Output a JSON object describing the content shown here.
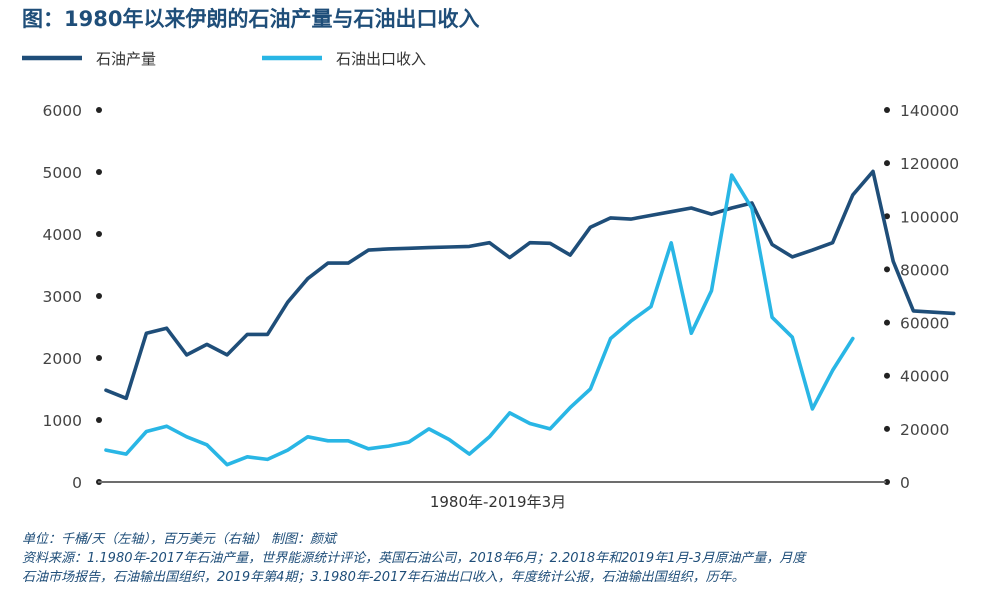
{
  "chart_data": {
    "type": "line",
    "title": "图：1980年以来伊朗的石油产量与石油出口收入",
    "xlabel": "1980年-2019年3月",
    "y_left": {
      "range": [
        0,
        6000
      ],
      "ticks": [
        "0",
        "1000",
        "2000",
        "3000",
        "4000",
        "5000",
        "6000"
      ]
    },
    "y_right": {
      "range": [
        0,
        140000
      ],
      "ticks": [
        "0",
        "20000",
        "40000",
        "60000",
        "80000",
        "100000",
        "120000",
        "140000"
      ]
    },
    "x_range": [
      0,
      38
    ],
    "legend": {
      "placement": "top-left"
    },
    "grid": false,
    "series": [
      {
        "name": "石油产量",
        "axis": "left",
        "color": "#1f4e79",
        "x": [
          0,
          1,
          2,
          3,
          4,
          5,
          6,
          7,
          8,
          9,
          10,
          11,
          12,
          13,
          14,
          15,
          16,
          17,
          18,
          19,
          20,
          21,
          22,
          23,
          24,
          25,
          26,
          27,
          28,
          29,
          30,
          31,
          32,
          33,
          34,
          35,
          36,
          37,
          38
        ],
        "values": [
          1480,
          1350,
          2400,
          2480,
          2050,
          2220,
          2050,
          2380,
          2380,
          2900,
          3280,
          3530,
          3530,
          3740,
          3760,
          3770,
          3780,
          3790,
          3800,
          3860,
          3620,
          3860,
          3850,
          3660,
          4110,
          4260,
          4240,
          4300,
          4360,
          4420,
          4320,
          4420,
          4500,
          3830,
          3630,
          3740,
          3860,
          4630,
          5010
        ]
      },
      {
        "name": "石油出口收入",
        "axis": "right",
        "color": "#29b6e5",
        "x": [
          0,
          1,
          2,
          3,
          4,
          5,
          6,
          7,
          8,
          9,
          10,
          11,
          12,
          13,
          14,
          15,
          16,
          17,
          18,
          19,
          20,
          21,
          22,
          23,
          24,
          25,
          26,
          27,
          28,
          29,
          30,
          31,
          32,
          33,
          34,
          35,
          36,
          37,
          38
        ],
        "values": [
          12000,
          10500,
          19000,
          21000,
          17000,
          14000,
          6500,
          9500,
          8500,
          12000,
          17000,
          15500,
          15500,
          12500,
          13500,
          15000,
          20000,
          16000,
          10500,
          17000,
          26000,
          22000,
          20000,
          28000,
          35000,
          54000,
          60500,
          66000,
          90000,
          56000,
          72000,
          115500,
          103000,
          62000,
          54500,
          27500,
          42000,
          54000,
          null
        ]
      }
    ],
    "extra_segment": {
      "axis": "left",
      "points": [
        [
          38,
          5010
        ],
        [
          39,
          3560
        ],
        [
          40,
          2760
        ],
        [
          42,
          2720
        ]
      ]
    }
  },
  "footnote": {
    "line1": "单位：千桶/天（左轴），百万美元（右轴）     制图：颜斌",
    "line2": "资料来源：1.1980年-2017年石油产量，世界能源统计评论，英国石油公司，2018年6月；2.2018年和2019年1月-3月原油产量，月度",
    "line3": "石油市场报告，石油输出国组织，2019年第4期；3.1980年-2017年石油出口收入，年度统计公报，石油输出国组织，历年。"
  }
}
